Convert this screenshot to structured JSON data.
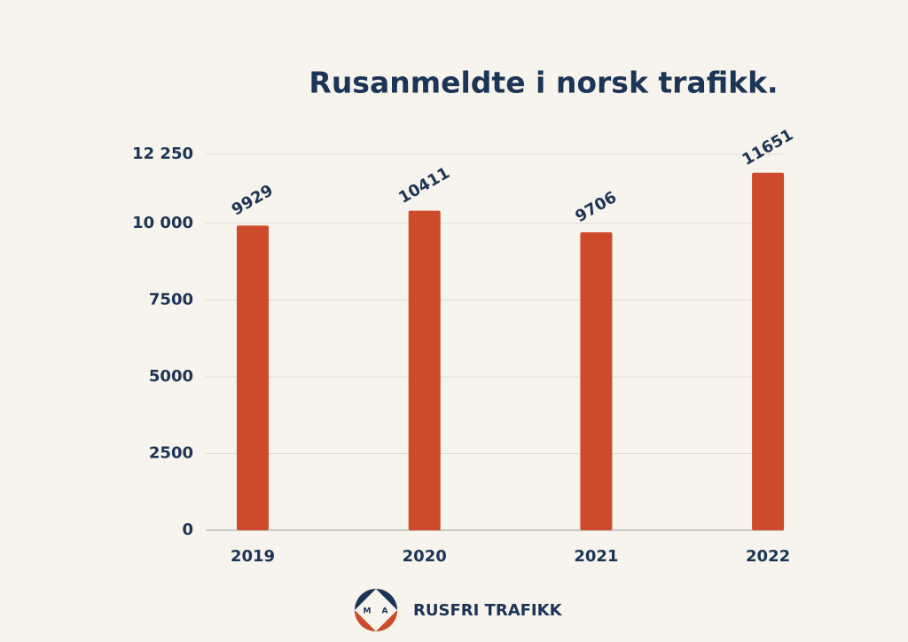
{
  "chart_data": {
    "type": "bar",
    "title": "Rusanmeldte i norsk trafikk.",
    "categories": [
      "2019",
      "2020",
      "2021",
      "2022"
    ],
    "values": [
      9929,
      10411,
      9706,
      11651
    ],
    "color": "#cd4a2a",
    "ylim": [
      0,
      12250
    ],
    "yticks": [
      0,
      2500,
      5000,
      7500,
      {
        "value": 10000,
        "label": "10 000"
      },
      {
        "value": 12250,
        "label": "12 250"
      }
    ],
    "grid": true
  },
  "footer": {
    "brand": "RUSFRI TRAFIKK",
    "logo_letters": [
      "M",
      "A"
    ]
  }
}
